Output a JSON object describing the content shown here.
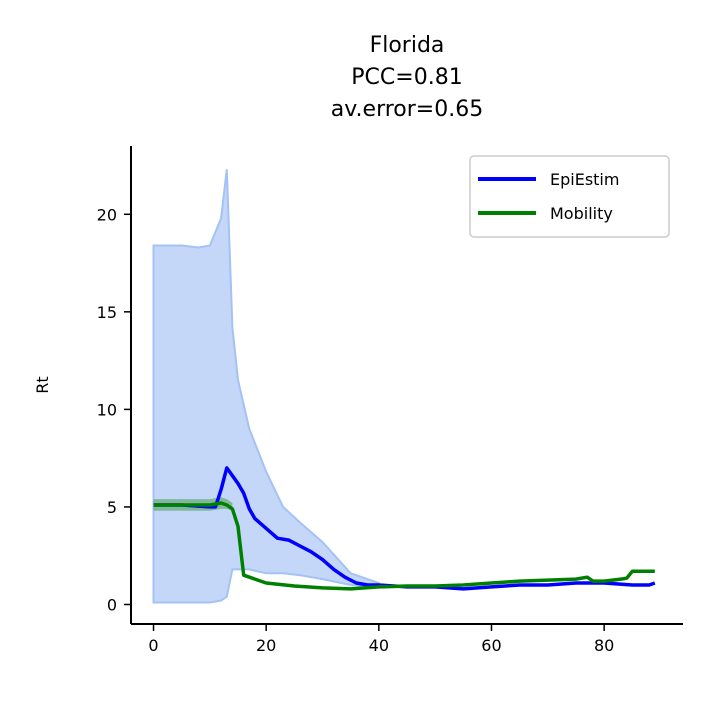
{
  "chart_data": {
    "type": "line",
    "title_lines": [
      "Florida",
      "PCC=0.81",
      "av.error=0.65"
    ],
    "xlabel": "",
    "ylabel": "Rt",
    "xlim": [
      -4,
      94
    ],
    "ylim": [
      -1,
      23.5
    ],
    "xticks": [
      0,
      20,
      40,
      60,
      80
    ],
    "yticks": [
      0,
      5,
      10,
      15,
      20
    ],
    "grid": false,
    "legend_position": "top-right",
    "colors": {
      "epiestim": "#0000ff",
      "mobility": "#008000",
      "ci_fill": "#a4c2f4",
      "ci_edge": "#a4c2f4",
      "mobility_band": "#4c9f4c"
    },
    "band": {
      "x": [
        0,
        3,
        5,
        8,
        10,
        12,
        13,
        14,
        15,
        17,
        20,
        23,
        26,
        30,
        35,
        40
      ],
      "upper": [
        18.4,
        18.4,
        18.4,
        18.3,
        18.4,
        19.8,
        22.3,
        14.2,
        11.5,
        9.0,
        6.8,
        5.0,
        4.2,
        3.2,
        1.6,
        1.1
      ],
      "lower": [
        0.1,
        0.1,
        0.1,
        0.1,
        0.1,
        0.2,
        0.4,
        1.8,
        1.8,
        1.8,
        1.6,
        1.6,
        1.5,
        1.3,
        1.0,
        0.9
      ]
    },
    "mobility_band": {
      "x": [
        0,
        5,
        10,
        12,
        13,
        14
      ],
      "upper": [
        5.4,
        5.4,
        5.4,
        5.5,
        5.4,
        5.2
      ],
      "lower": [
        4.8,
        4.8,
        4.8,
        4.9,
        4.9,
        4.8
      ]
    },
    "series": [
      {
        "name": "EpiEstim",
        "x": [
          0,
          5,
          10,
          11,
          12,
          13,
          14,
          15,
          16,
          17,
          18,
          20,
          22,
          24,
          26,
          28,
          30,
          32,
          34,
          36,
          38,
          40,
          45,
          50,
          55,
          60,
          65,
          70,
          75,
          80,
          85,
          88,
          89
        ],
        "values": [
          5.1,
          5.1,
          5.0,
          5.0,
          5.9,
          7.0,
          6.6,
          6.2,
          5.7,
          4.9,
          4.4,
          3.9,
          3.4,
          3.3,
          3.0,
          2.7,
          2.3,
          1.8,
          1.4,
          1.1,
          1.0,
          1.0,
          0.9,
          0.9,
          0.8,
          0.9,
          1.0,
          1.0,
          1.1,
          1.1,
          1.0,
          1.0,
          1.1
        ]
      },
      {
        "name": "Mobility",
        "x": [
          0,
          5,
          10,
          12,
          13,
          14,
          15,
          16,
          18,
          20,
          25,
          30,
          35,
          40,
          45,
          50,
          55,
          60,
          65,
          70,
          75,
          77,
          78,
          80,
          83,
          84,
          85,
          86,
          89
        ],
        "values": [
          5.1,
          5.1,
          5.1,
          5.2,
          5.1,
          4.9,
          4.0,
          1.5,
          1.3,
          1.1,
          0.95,
          0.85,
          0.8,
          0.9,
          0.95,
          0.95,
          1.0,
          1.1,
          1.2,
          1.25,
          1.3,
          1.4,
          1.2,
          1.2,
          1.3,
          1.35,
          1.7,
          1.7,
          1.7
        ]
      }
    ]
  }
}
